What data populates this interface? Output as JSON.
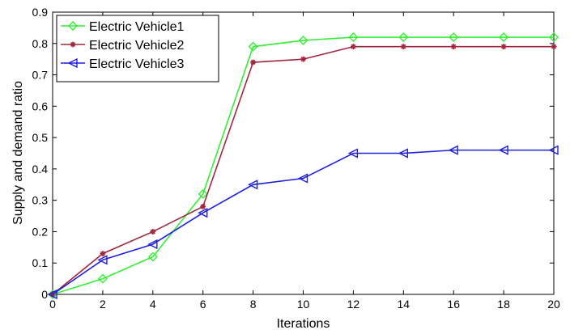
{
  "chart_data": {
    "type": "line",
    "title": "",
    "xlabel": "Iterations",
    "ylabel": "Supply and demand ratio",
    "xlim": [
      0,
      20
    ],
    "ylim": [
      0,
      0.9
    ],
    "x_ticks": [
      0,
      2,
      4,
      6,
      8,
      10,
      12,
      14,
      16,
      18,
      20
    ],
    "y_ticks": [
      0,
      0.1,
      0.2,
      0.3,
      0.4,
      0.5,
      0.6,
      0.7,
      0.8,
      0.9
    ],
    "x_tick_labels": [
      "0",
      "2",
      "4",
      "6",
      "8",
      "10",
      "12",
      "14",
      "16",
      "18",
      "20"
    ],
    "y_tick_labels": [
      "0",
      "0.1",
      "0.2",
      "0.3",
      "0.4",
      "0.5",
      "0.6",
      "0.7",
      "0.8",
      "0.9"
    ],
    "grid": false,
    "legend_position": "top-left",
    "x": [
      0,
      2,
      4,
      6,
      8,
      10,
      12,
      14,
      16,
      18,
      20
    ],
    "series": [
      {
        "name": "Electric Vehicle1",
        "color": "#33ee33",
        "marker": "diamond",
        "values": [
          0,
          0.05,
          0.12,
          0.32,
          0.79,
          0.81,
          0.82,
          0.82,
          0.82,
          0.82,
          0.82
        ]
      },
      {
        "name": "Electric Vehicle2",
        "color": "#a0293f",
        "marker": "asterisk",
        "values": [
          0,
          0.13,
          0.2,
          0.28,
          0.74,
          0.75,
          0.79,
          0.79,
          0.79,
          0.79,
          0.79
        ]
      },
      {
        "name": "Electric Vehicle3",
        "color": "#1f1fe0",
        "marker": "triangle-left",
        "values": [
          0,
          0.11,
          0.16,
          0.26,
          0.35,
          0.37,
          0.45,
          0.45,
          0.46,
          0.46,
          0.46
        ]
      }
    ]
  }
}
